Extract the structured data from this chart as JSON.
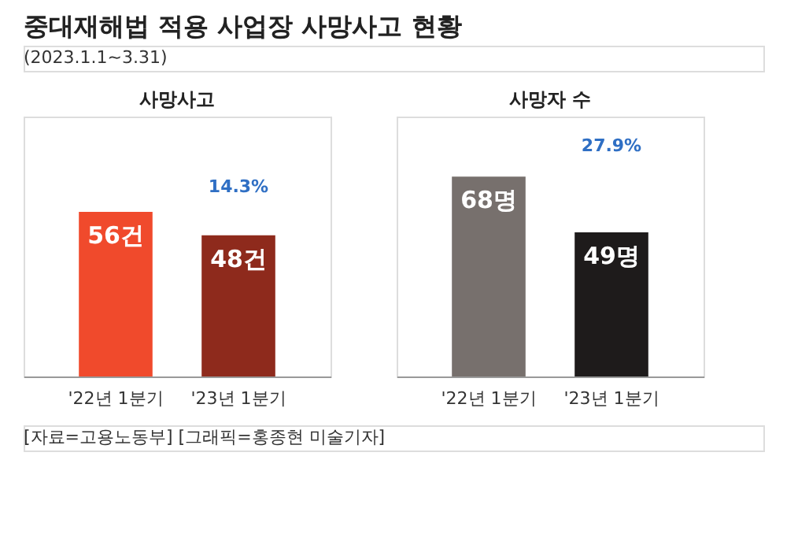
{
  "chart_data": [
    {
      "type": "other",
      "title": "중대재해법 적용 사업장 사망사고 현황",
      "subtitle": "(2023.1.1~3.31)"
    },
    {
      "type": "bar",
      "title": "사망사고",
      "categories": [
        "'22년 1분기",
        "'23년 1분기"
      ],
      "values": [
        56,
        48
      ],
      "colors": [
        "#f04a2c",
        "#8e2a1c"
      ],
      "value_labels": [
        "56건",
        "48건"
      ],
      "annotations": [
        "14.3%"
      ]
    },
    {
      "type": "bar",
      "title": "사망자 수",
      "categories": [
        "'22년 1분기",
        "'23년 1분기"
      ],
      "values": [
        68,
        49
      ],
      "colors": [
        "#77706d",
        "#1e1b1b"
      ],
      "value_labels": [
        "68명",
        "49명"
      ],
      "annotations": [
        "27.9%"
      ]
    },
    {
      "type": "other",
      "annotations": [
        "[자료=고용노동부] [그래픽=홍종현 미술기자]"
      ]
    }
  ]
}
